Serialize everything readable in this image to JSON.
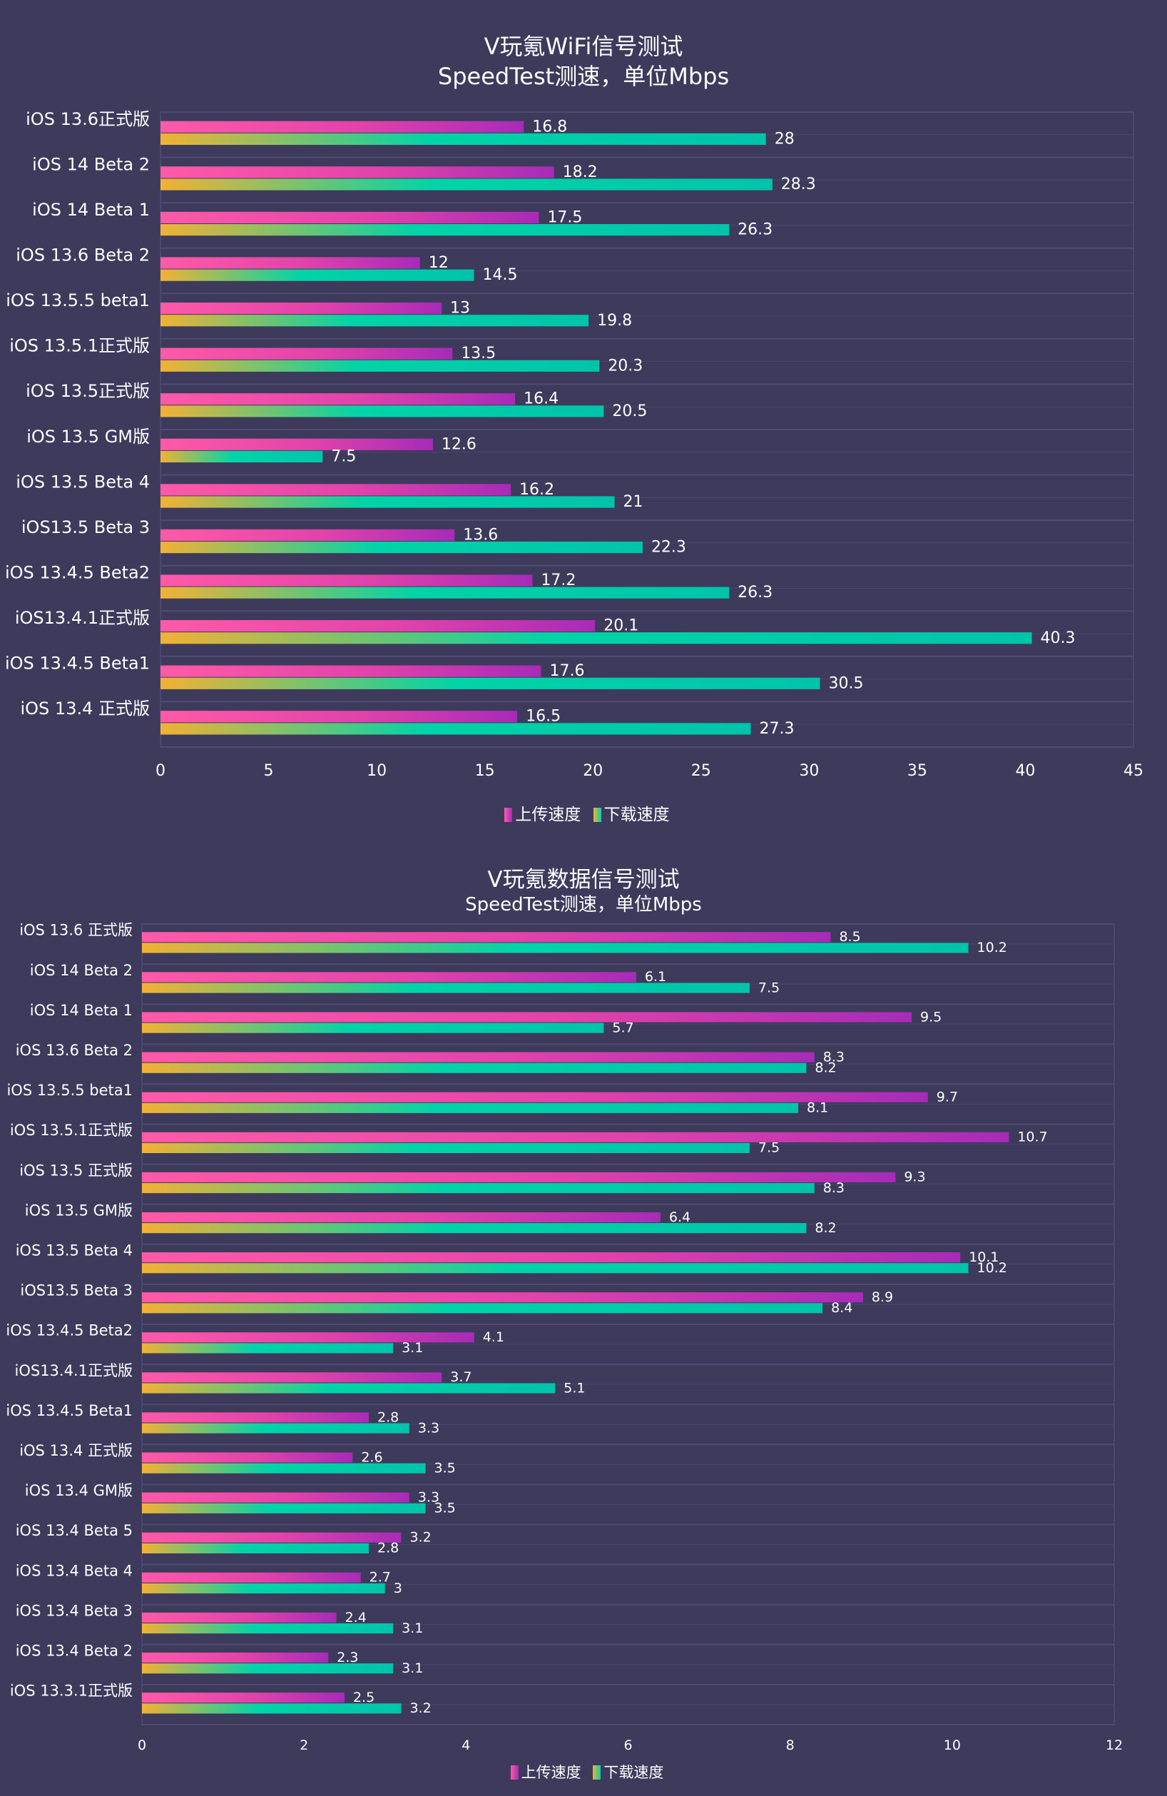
{
  "colors": {
    "background": "#3d3a5c",
    "upload_gradient": [
      "#ff5aa8",
      "#a72bb8"
    ],
    "download_gradient": [
      "#f2b134",
      "#00d4a8",
      "#00c4aa"
    ],
    "grid": "#4f4c74"
  },
  "chart_data": [
    {
      "type": "bar",
      "orientation": "horizontal",
      "title": "V玩氪WiFi信号测试",
      "subtitle": "SpeedTest测速，单位Mbps",
      "xlim": [
        0,
        45
      ],
      "xticks": [
        0,
        5,
        10,
        15,
        20,
        25,
        30,
        35,
        40,
        45
      ],
      "grid": true,
      "legend_position": "bottom",
      "categories": [
        "iOS 13.6正式版",
        "iOS 14 Beta 2",
        "iOS 14 Beta 1",
        "iOS 13.6 Beta 2",
        "iOS 13.5.5 beta1",
        "iOS 13.5.1正式版",
        "iOS 13.5正式版",
        "iOS 13.5 GM版",
        "iOS 13.5 Beta 4",
        "iOS13.5 Beta 3",
        "iOS 13.4.5 Beta2",
        "iOS13.4.1正式版",
        "iOS 13.4.5 Beta1",
        "iOS 13.4 正式版"
      ],
      "series": [
        {
          "name": "上传速度",
          "values": [
            16.8,
            18.2,
            17.5,
            12,
            13,
            13.5,
            16.4,
            12.6,
            16.2,
            13.6,
            17.2,
            20.1,
            17.6,
            16.5
          ]
        },
        {
          "name": "下载速度",
          "values": [
            28,
            28.3,
            26.3,
            14.5,
            19.8,
            20.3,
            20.5,
            7.5,
            21,
            22.3,
            26.3,
            40.3,
            30.5,
            27.3
          ]
        }
      ]
    },
    {
      "type": "bar",
      "orientation": "horizontal",
      "title": "V玩氪数据信号测试",
      "subtitle": "SpeedTest测速，单位Mbps",
      "xlim": [
        0,
        12
      ],
      "xticks": [
        0,
        2,
        4,
        6,
        8,
        10,
        12
      ],
      "grid": true,
      "legend_position": "bottom",
      "categories": [
        "iOS 13.6 正式版",
        "iOS 14 Beta 2",
        "iOS 14 Beta 1",
        "iOS 13.6 Beta 2",
        "iOS 13.5.5 beta1",
        "iOS 13.5.1正式版",
        "iOS 13.5 正式版",
        "iOS 13.5 GM版",
        "iOS 13.5 Beta 4",
        "iOS13.5 Beta 3",
        "iOS 13.4.5 Beta2",
        "iOS13.4.1正式版",
        "iOS 13.4.5 Beta1",
        "iOS 13.4 正式版",
        "iOS 13.4 GM版",
        "iOS 13.4 Beta 5",
        "iOS 13.4 Beta 4",
        "iOS 13.4 Beta 3",
        "iOS 13.4 Beta 2",
        "iOS 13.3.1正式版"
      ],
      "series": [
        {
          "name": "上传速度",
          "values": [
            8.5,
            6.1,
            9.5,
            8.3,
            9.7,
            10.7,
            9.3,
            6.4,
            10.1,
            8.9,
            4.1,
            3.7,
            2.8,
            2.6,
            3.3,
            3.2,
            2.7,
            2.4,
            2.3,
            2.5
          ]
        },
        {
          "name": "下载速度",
          "values": [
            10.2,
            7.5,
            5.7,
            8.2,
            8.1,
            7.5,
            8.3,
            8.2,
            10.2,
            8.4,
            3.1,
            5.1,
            3.3,
            3.5,
            3.5,
            2.8,
            3,
            3.1,
            3.1,
            3.2
          ]
        }
      ]
    }
  ]
}
